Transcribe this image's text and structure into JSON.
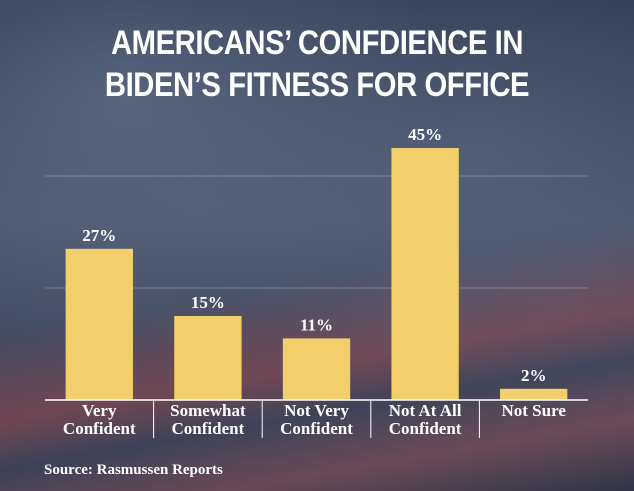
{
  "chart_data": {
    "type": "bar",
    "title": "AMERICANS’ CONFDIENCE IN BIDEN’S FITNESS FOR OFFICE",
    "categories": [
      "Very Confident",
      "Somewhat Confident",
      "Not Very Confident",
      "Not At All Confident",
      "Not Sure"
    ],
    "values": [
      27,
      15,
      11,
      45,
      2
    ],
    "value_labels": [
      "27%",
      "15%",
      "11%",
      "45%",
      "2%"
    ],
    "color": "#f2cf6b",
    "ylim": [
      0,
      50
    ],
    "gridlines": [
      20,
      40
    ],
    "source": "Source: Rasmussen Reports"
  }
}
